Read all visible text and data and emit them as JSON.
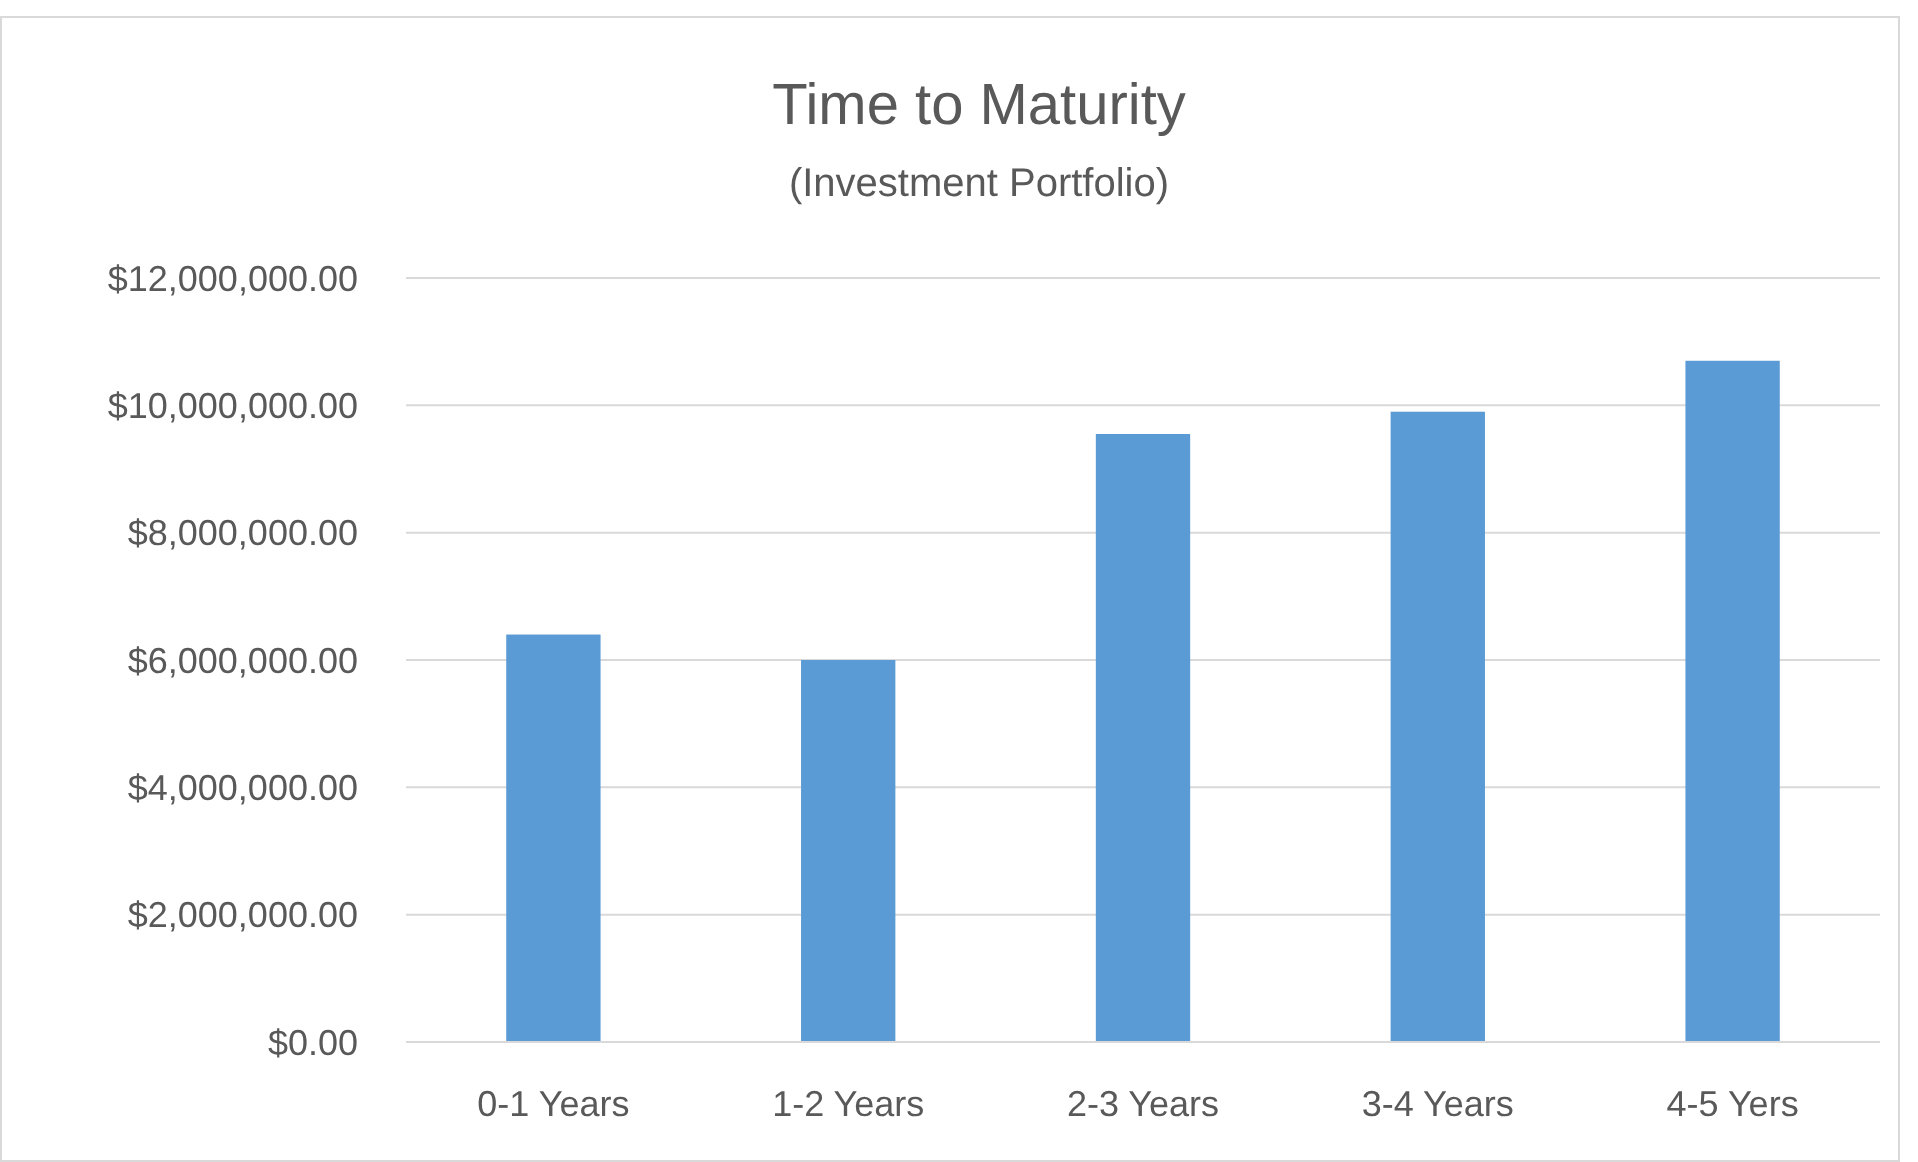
{
  "chart_data": {
    "type": "bar",
    "title": "Time to Maturity",
    "subtitle": "(Investment Portfolio)",
    "categories": [
      "0-1 Years",
      "1-2 Years",
      "2-3 Years",
      "3-4 Years",
      "4-5 Yers"
    ],
    "values": [
      6400000,
      6000000,
      9550000,
      9900000,
      10700000
    ],
    "color": "#5b9bd5",
    "ylim": [
      0,
      12000000
    ],
    "yticks": [
      {
        "value": 0,
        "label": "$0.00"
      },
      {
        "value": 2000000,
        "label": "$2,000,000.00"
      },
      {
        "value": 4000000,
        "label": "$4,000,000.00"
      },
      {
        "value": 6000000,
        "label": "$6,000,000.00"
      },
      {
        "value": 8000000,
        "label": "$8,000,000.00"
      },
      {
        "value": 10000000,
        "label": "$10,000,000.00"
      },
      {
        "value": 12000000,
        "label": "$12,000,000.00"
      }
    ],
    "grid": "y"
  }
}
